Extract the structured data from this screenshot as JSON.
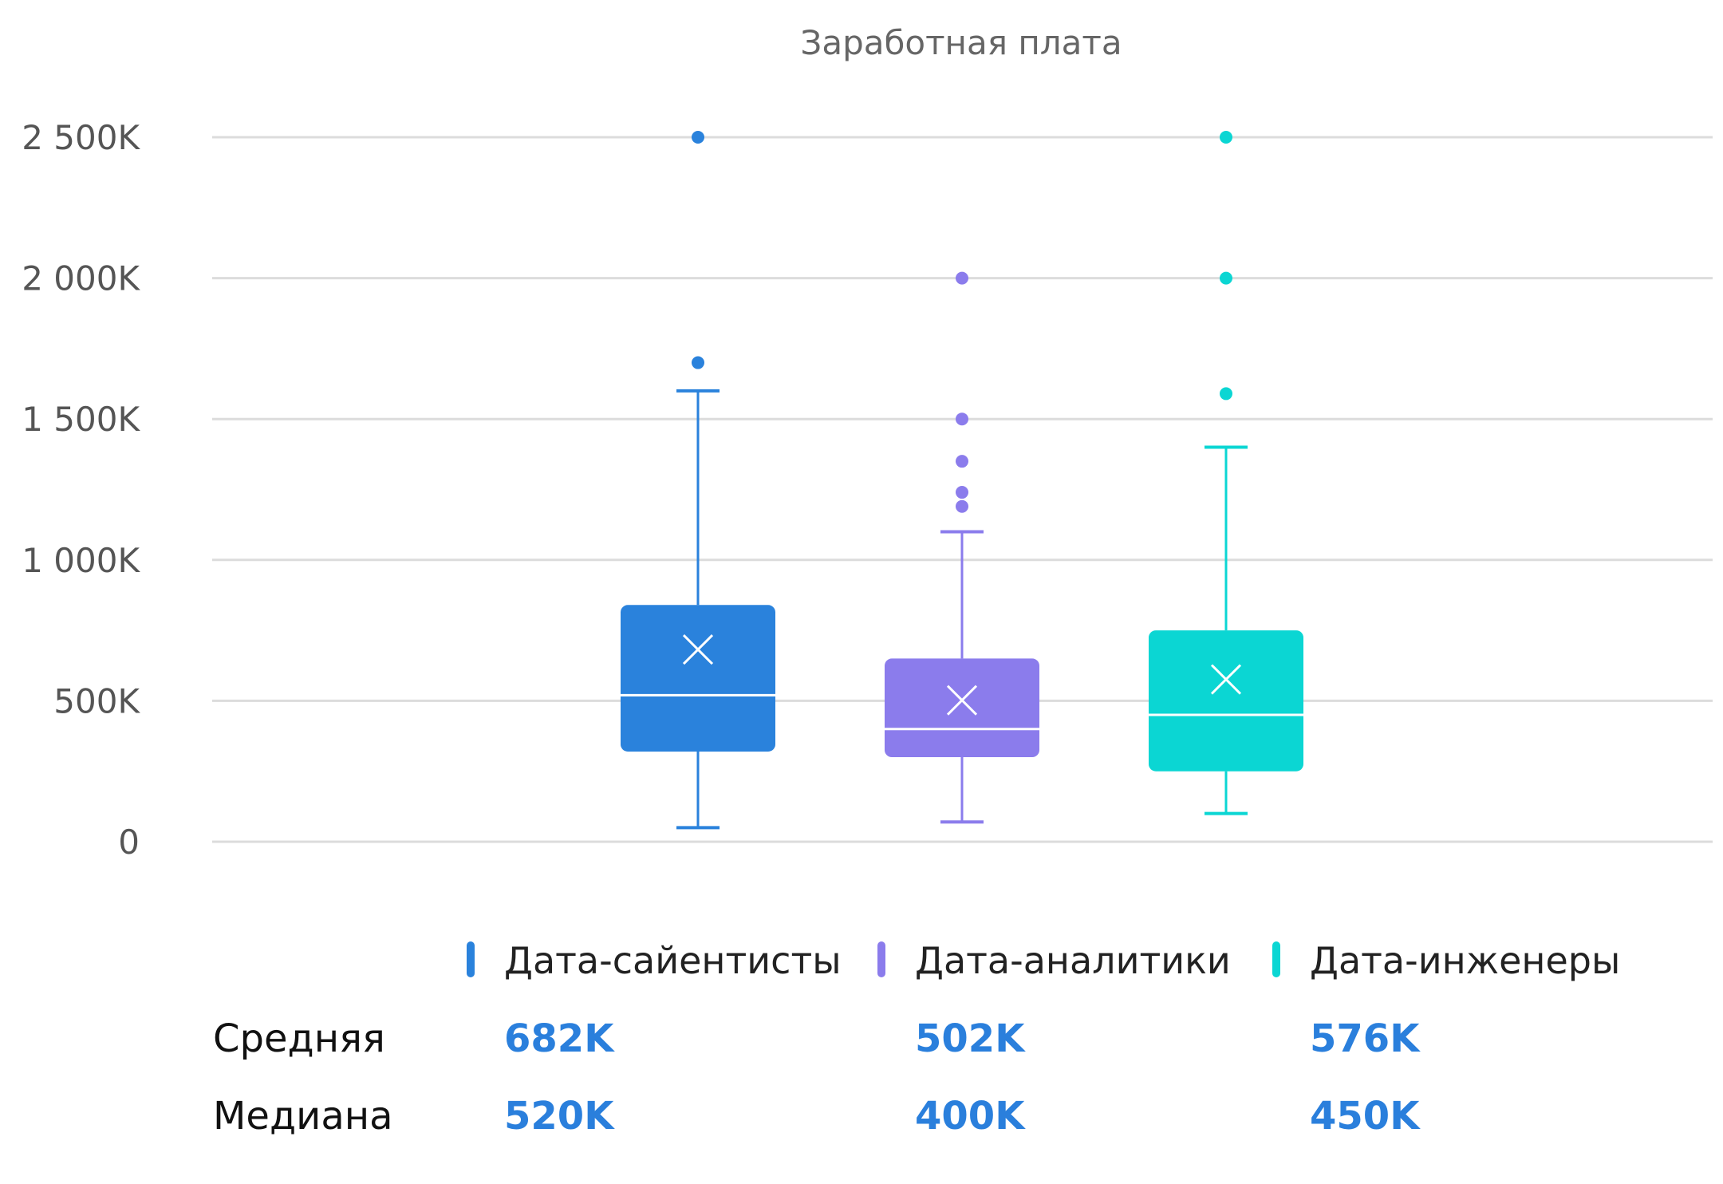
{
  "chart_data": {
    "type": "boxplot",
    "title": "Заработная плата",
    "xlabel": "",
    "ylabel": "",
    "ylim": [
      0,
      2500
    ],
    "y_ticks": [
      {
        "value": 0,
        "label": "0"
      },
      {
        "value": 500,
        "label": "500K"
      },
      {
        "value": 1000,
        "label": "1 000K"
      },
      {
        "value": 1500,
        "label": "1 500K"
      },
      {
        "value": 2000,
        "label": "2 000K"
      },
      {
        "value": 2500,
        "label": "2 500K"
      }
    ],
    "grid": true,
    "legend_position": "bottom",
    "series": [
      {
        "name": "Дата-сайентисты",
        "color": "#2a82dc",
        "min": 50,
        "q1": 320,
        "median": 520,
        "q3": 840,
        "max": 1600,
        "mean": 682,
        "outliers": [
          1700,
          2500
        ]
      },
      {
        "name": "Дата-аналитики",
        "color": "#8b7cec",
        "min": 70,
        "q1": 300,
        "median": 400,
        "q3": 650,
        "max": 1100,
        "mean": 502,
        "outliers": [
          1190,
          1240,
          1350,
          1500,
          2000
        ]
      },
      {
        "name": "Дата-инженеры",
        "color": "#0bd6d3",
        "min": 100,
        "q1": 250,
        "median": 450,
        "q3": 750,
        "max": 1400,
        "mean": 576,
        "outliers": [
          1590,
          2000,
          2500
        ]
      }
    ],
    "summary_table": {
      "rows": [
        {
          "label": "Средняя",
          "values": [
            "682K",
            "502K",
            "576K"
          ]
        },
        {
          "label": "Медиана",
          "values": [
            "520K",
            "400K",
            "450K"
          ]
        }
      ],
      "value_color": "#2a7fdc"
    }
  }
}
